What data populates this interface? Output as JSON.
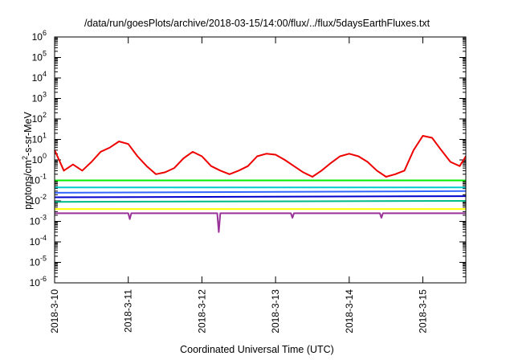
{
  "chart_data": {
    "type": "line",
    "title": "/data/run/goesPlots/archive/2018-03-15/14:00/flux/../flux/5daysEarthFluxes.txt",
    "xlabel": "Coordinated Universal Time (UTC)",
    "ylabel_parts": {
      "pre": "protons/cm",
      "sup": "2",
      "post": "-s-sr-MeV"
    },
    "x_tick_labels": [
      "2018-3-10",
      "2018-3-11",
      "2018-3-12",
      "2018-3-13",
      "2018-3-14",
      "2018-3-15"
    ],
    "x_tick_dates": [
      "2018-03-10",
      "2018-03-11",
      "2018-03-12",
      "2018-03-13",
      "2018-03-14",
      "2018-03-15"
    ],
    "xlim": [
      "2018-03-10T00:00",
      "2018-03-15T14:00"
    ],
    "y_scale": "log",
    "ylim": [
      1e-06,
      1000000.0
    ],
    "y_ticks": [
      {
        "base": "10",
        "exp": "-6",
        "value": 1e-06
      },
      {
        "base": "10",
        "exp": "-5",
        "value": 1e-05
      },
      {
        "base": "10",
        "exp": "-4",
        "value": 0.0001
      },
      {
        "base": "10",
        "exp": "-3",
        "value": 0.001
      },
      {
        "base": "10",
        "exp": "-2",
        "value": 0.01
      },
      {
        "base": "10",
        "exp": "-1",
        "value": 0.1
      },
      {
        "base": "10",
        "exp": "0",
        "value": 1.0
      },
      {
        "base": "10",
        "exp": "1",
        "value": 10.0
      },
      {
        "base": "10",
        "exp": "2",
        "value": 100.0
      },
      {
        "base": "10",
        "exp": "3",
        "value": 1000.0
      },
      {
        "base": "10",
        "exp": "4",
        "value": 10000.0
      },
      {
        "base": "10",
        "exp": "5",
        "value": 100000.0
      },
      {
        "base": "10",
        "exp": "6",
        "value": 1000000.0
      }
    ],
    "grid": false,
    "series": [
      {
        "color": "#ee0000",
        "x": [
          "2018-03-10T00:00",
          "2018-03-10T03:00",
          "2018-03-10T06:00",
          "2018-03-10T09:00",
          "2018-03-10T12:00",
          "2018-03-10T15:00",
          "2018-03-10T18:00",
          "2018-03-10T21:00",
          "2018-03-11T00:00",
          "2018-03-11T03:00",
          "2018-03-11T06:00",
          "2018-03-11T09:00",
          "2018-03-11T12:00",
          "2018-03-11T15:00",
          "2018-03-11T18:00",
          "2018-03-11T21:00",
          "2018-03-12T00:00",
          "2018-03-12T03:00",
          "2018-03-12T06:00",
          "2018-03-12T09:00",
          "2018-03-12T12:00",
          "2018-03-12T15:00",
          "2018-03-12T18:00",
          "2018-03-12T21:00",
          "2018-03-13T00:00",
          "2018-03-13T03:00",
          "2018-03-13T06:00",
          "2018-03-13T09:00",
          "2018-03-13T12:00",
          "2018-03-13T15:00",
          "2018-03-13T18:00",
          "2018-03-13T21:00",
          "2018-03-14T00:00",
          "2018-03-14T03:00",
          "2018-03-14T06:00",
          "2018-03-14T09:00",
          "2018-03-14T12:00",
          "2018-03-14T15:00",
          "2018-03-14T18:00",
          "2018-03-14T21:00",
          "2018-03-15T00:00",
          "2018-03-15T03:00",
          "2018-03-15T06:00",
          "2018-03-15T09:00",
          "2018-03-15T12:00",
          "2018-03-15T14:00"
        ],
        "y": [
          3,
          0.3,
          0.6,
          0.3,
          0.8,
          2.5,
          4,
          8,
          6,
          1.5,
          0.5,
          0.2,
          0.25,
          0.4,
          1.2,
          2.5,
          1.5,
          0.5,
          0.3,
          0.2,
          0.3,
          0.5,
          1.5,
          2,
          1.8,
          1,
          0.5,
          0.25,
          0.15,
          0.3,
          0.7,
          1.5,
          2,
          1.5,
          0.8,
          0.3,
          0.15,
          0.2,
          0.3,
          3,
          15,
          12,
          3,
          0.8,
          0.5,
          1.5
        ]
      },
      {
        "color": "#00ee00",
        "x": [
          "2018-03-10T00:00",
          "2018-03-15T14:00"
        ],
        "y": [
          0.1,
          0.1
        ]
      },
      {
        "color": "#00cccc",
        "x": [
          "2018-03-10T00:00",
          "2018-03-15T14:00"
        ],
        "y": [
          0.045,
          0.045
        ]
      },
      {
        "color": "#3366ff",
        "x": [
          "2018-03-10T00:00",
          "2018-03-15T14:00"
        ],
        "y": [
          0.025,
          0.03
        ]
      },
      {
        "color": "#0000cc",
        "x": [
          "2018-03-10T00:00",
          "2018-03-15T14:00"
        ],
        "y": [
          0.015,
          0.017
        ]
      },
      {
        "color": "#00bb88",
        "x": [
          "2018-03-10T00:00",
          "2018-03-15T14:00"
        ],
        "y": [
          0.009,
          0.01
        ]
      },
      {
        "color": "#ffff00",
        "x": [
          "2018-03-10T00:00",
          "2018-03-15T14:00"
        ],
        "y": [
          0.004,
          0.004
        ]
      },
      {
        "color": "#993399",
        "x": [
          "2018-03-10T00:00",
          "2018-03-11T00:00",
          "2018-03-11T00:30",
          "2018-03-11T01:00",
          "2018-03-12T05:00",
          "2018-03-12T05:30",
          "2018-03-12T06:00",
          "2018-03-13T05:00",
          "2018-03-13T05:30",
          "2018-03-13T06:00",
          "2018-03-14T10:00",
          "2018-03-14T10:30",
          "2018-03-14T11:00",
          "2018-03-15T14:00"
        ],
        "y": [
          0.0025,
          0.0025,
          0.0013,
          0.0025,
          0.0025,
          0.0003,
          0.0025,
          0.0025,
          0.0015,
          0.0025,
          0.0025,
          0.0015,
          0.0025,
          0.0025
        ]
      }
    ]
  }
}
